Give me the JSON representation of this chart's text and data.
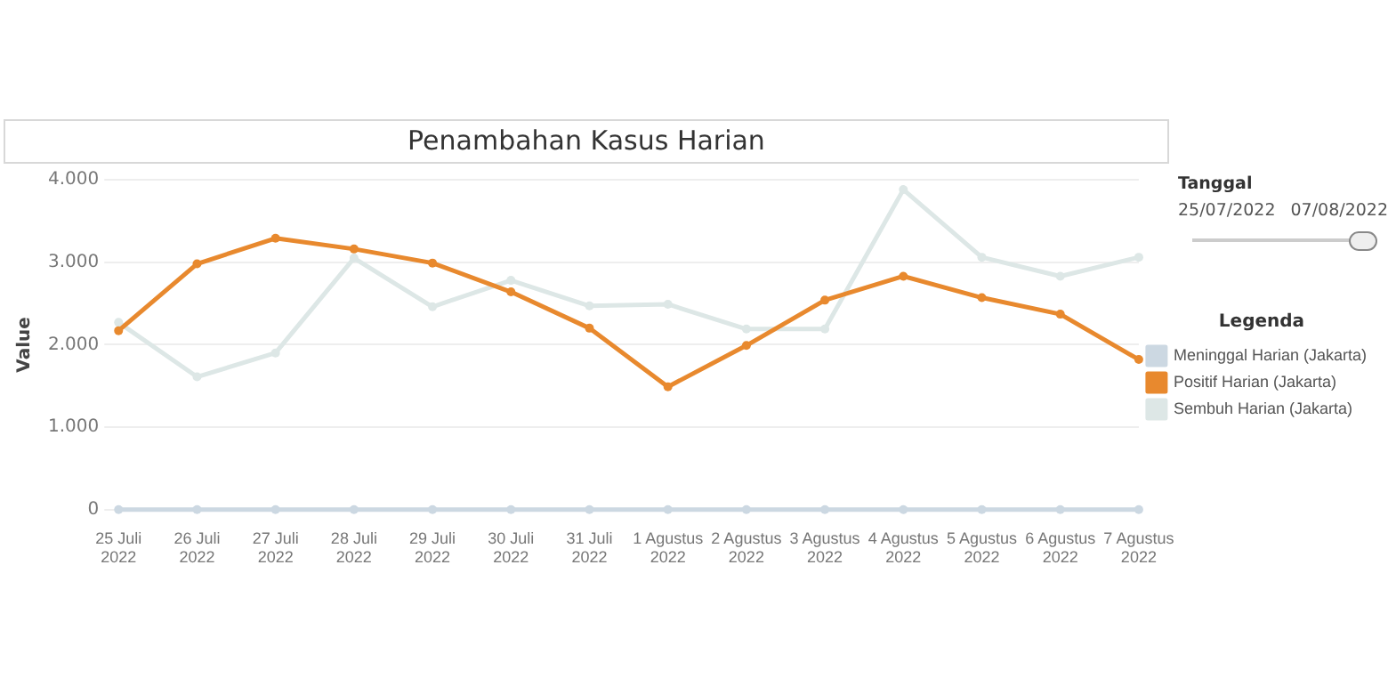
{
  "chart_data": {
    "type": "line",
    "title": "Penambahan Kasus Harian",
    "ylabel": "Value",
    "legend_title": "Legenda",
    "categories": [
      "25 Juli 2022",
      "26 Juli 2022",
      "27 Juli 2022",
      "28 Juli 2022",
      "29 Juli 2022",
      "30 Juli 2022",
      "31 Juli 2022",
      "1 Agustus 2022",
      "2 Agustus 2022",
      "3 Agustus 2022",
      "4 Agustus 2022",
      "5 Agustus 2022",
      "6 Agustus 2022",
      "7 Agustus 2022"
    ],
    "series": [
      {
        "name": "Meninggal Harian (Jakarta)",
        "color": "#ccd8e2",
        "values": [
          0,
          0,
          0,
          0,
          0,
          0,
          0,
          0,
          0,
          0,
          0,
          0,
          0,
          0
        ]
      },
      {
        "name": "Positif Harian (Jakarta)",
        "color": "#e8892e",
        "values": [
          2170,
          2980,
          3290,
          3160,
          2990,
          2640,
          2200,
          1490,
          1990,
          2540,
          2830,
          2570,
          2370,
          1820
        ]
      },
      {
        "name": "Sembuh Harian (Jakarta)",
        "color": "#dde7e6",
        "values": [
          2270,
          1610,
          1900,
          3050,
          2460,
          2780,
          2470,
          2490,
          2190,
          2190,
          3880,
          3060,
          2830,
          3060
        ]
      }
    ],
    "ylim": [
      0,
      4000
    ],
    "yticks": [
      {
        "value": 0,
        "label": "0"
      },
      {
        "value": 1000,
        "label": "1.000"
      },
      {
        "value": 2000,
        "label": "2.000"
      },
      {
        "value": 3000,
        "label": "3.000"
      },
      {
        "value": 4000,
        "label": "4.000"
      }
    ],
    "grid": "y",
    "legend": "right",
    "marker": "circle",
    "line_style": "solid",
    "annotations": [
      "Tanggal",
      "25/07/2022",
      "07/08/2022"
    ]
  }
}
